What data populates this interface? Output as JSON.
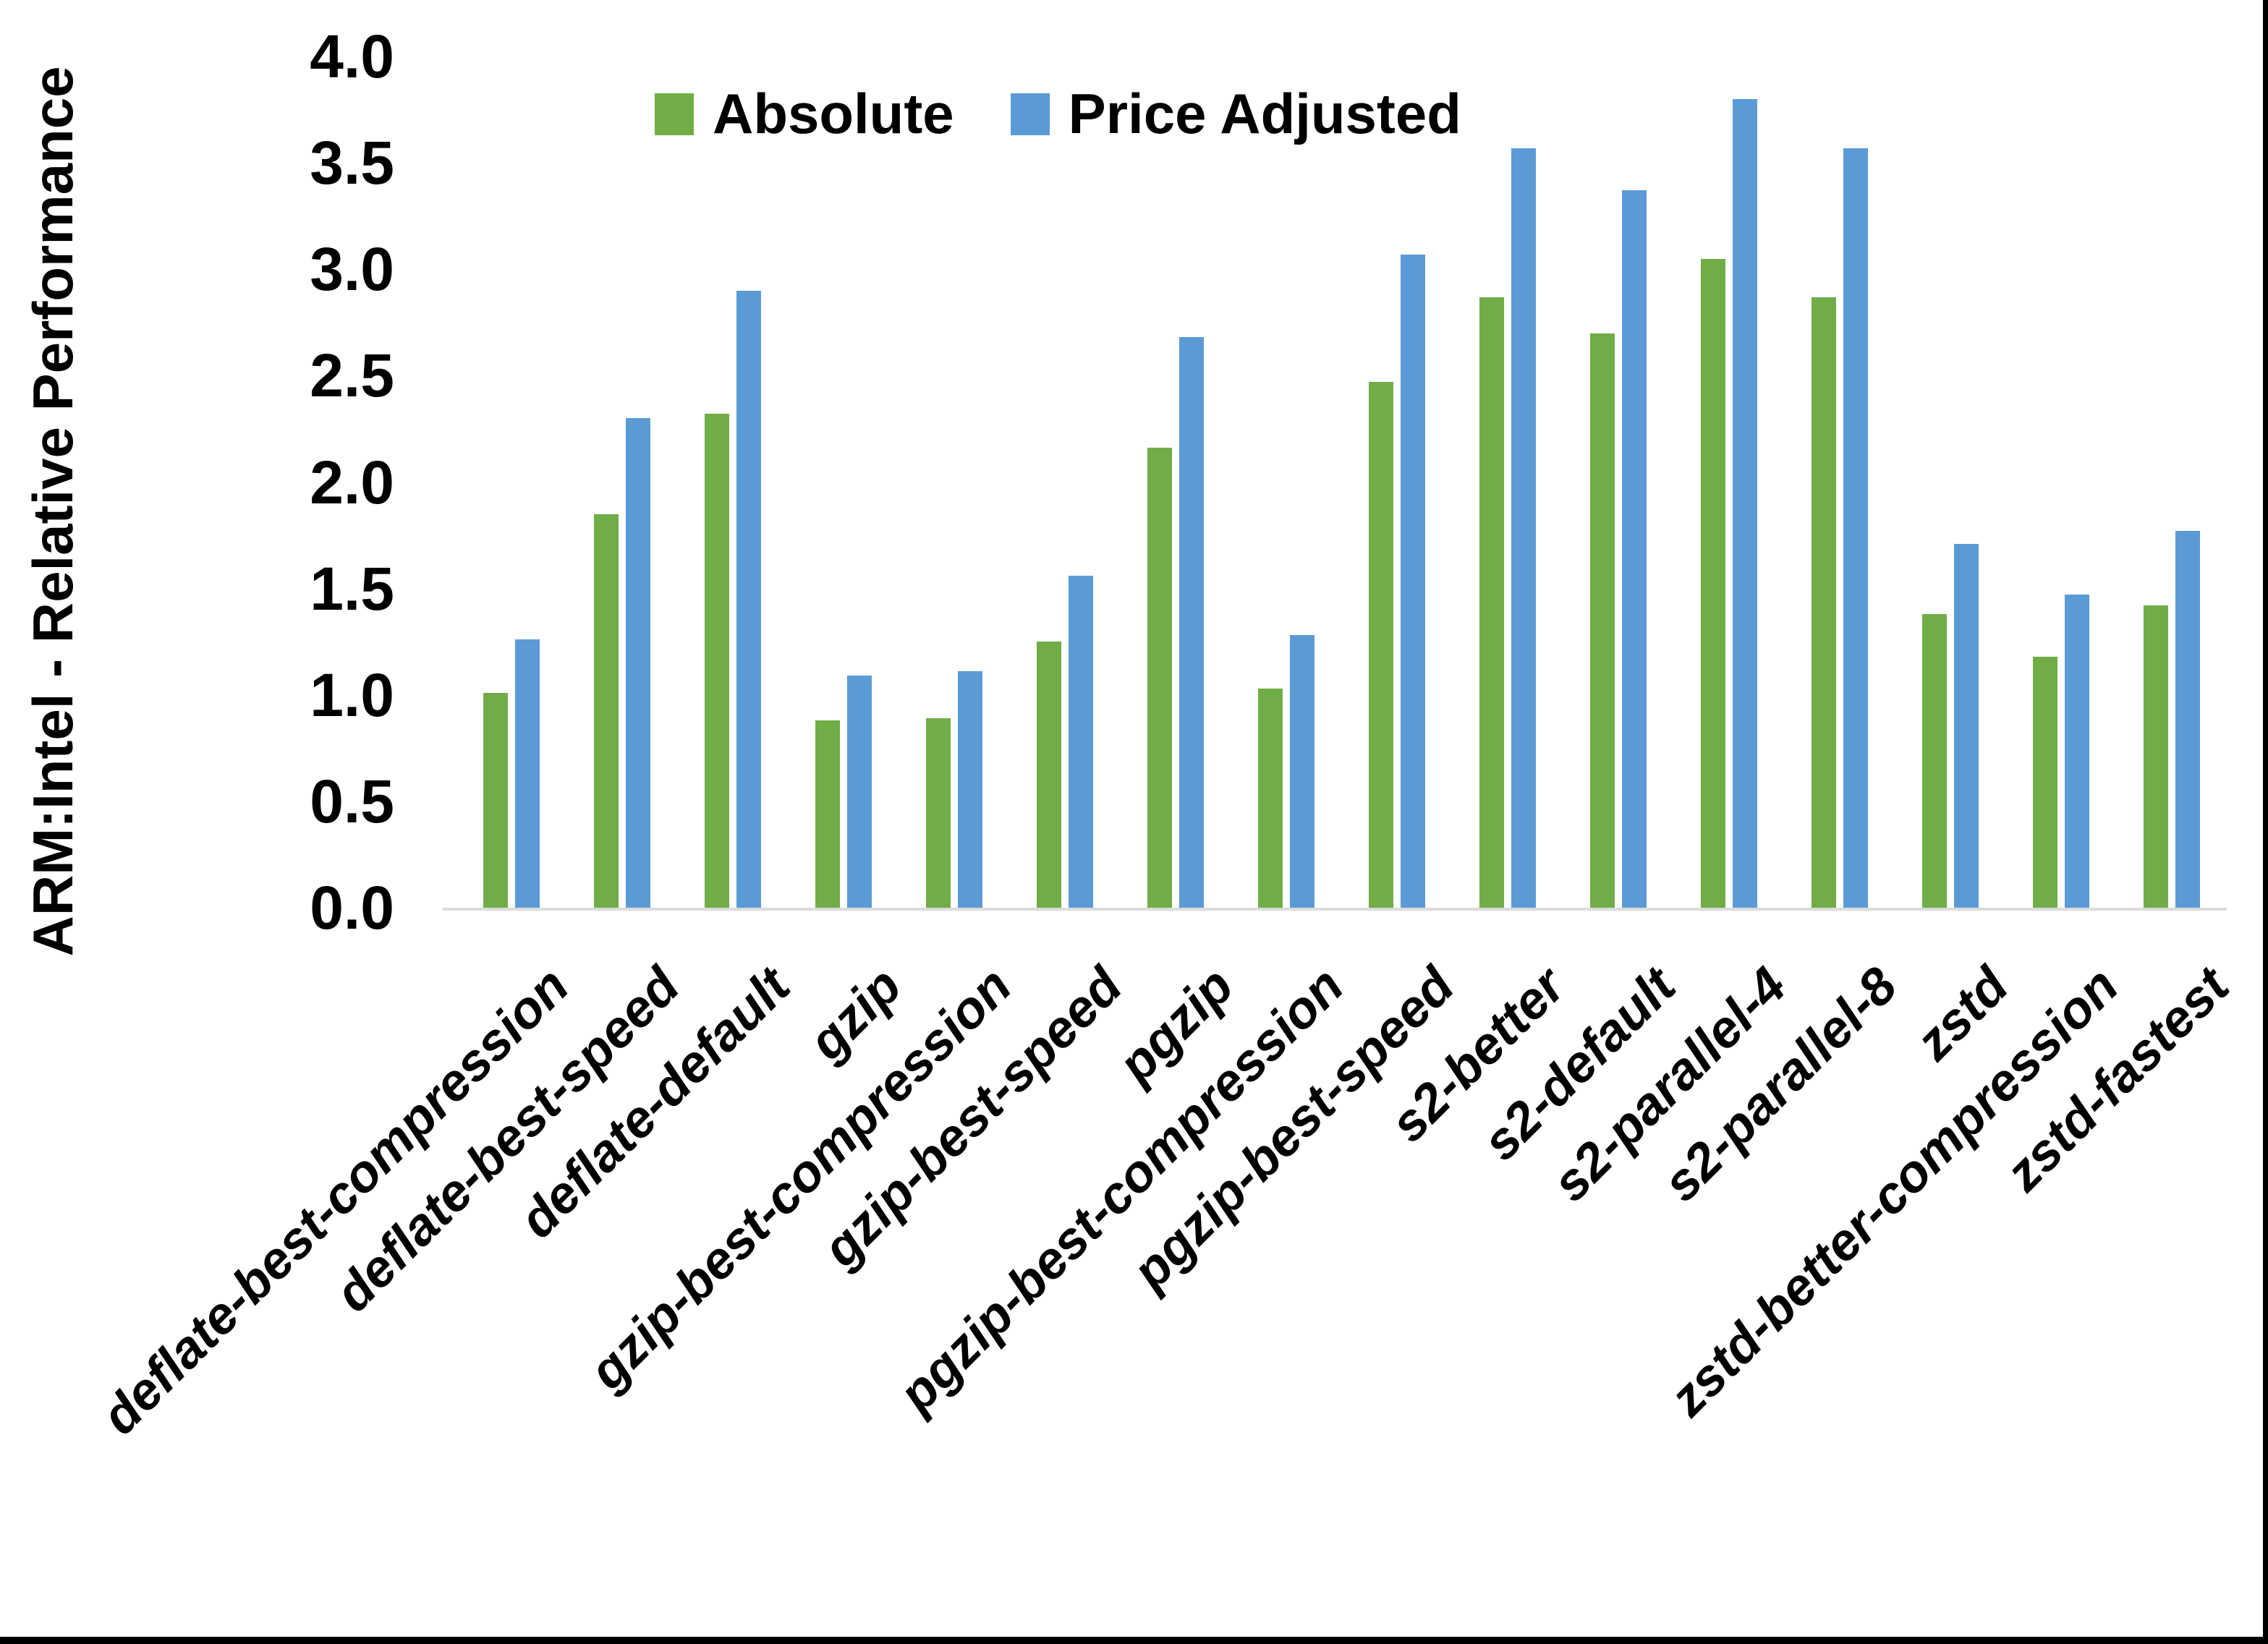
{
  "chart_data": {
    "type": "bar",
    "y_axis_title": "ARM:Intel - Relative Performance",
    "categories": [
      "deflate-best-compression",
      "deflate-best-speed",
      "deflate-default",
      "gzip",
      "gzip-best-compression",
      "gzip-best-speed",
      "pgzip",
      "pgzip-best-compression",
      "pgzip-best-speed",
      "s2-better",
      "s2-default",
      "s2-parallel-4",
      "s2-parallel-8",
      "zstd",
      "zstd-better-compression",
      "zstd-fastest"
    ],
    "series": [
      {
        "name": "Absolute",
        "color": "#70AD47",
        "values": [
          1.01,
          1.85,
          2.32,
          0.88,
          0.89,
          1.25,
          2.16,
          1.03,
          2.47,
          2.87,
          2.7,
          3.05,
          2.87,
          1.38,
          1.18,
          1.42
        ]
      },
      {
        "name": "Price Adjusted",
        "color": "#5B9BD5",
        "values": [
          1.26,
          2.3,
          2.9,
          1.09,
          1.11,
          1.56,
          2.68,
          1.28,
          3.07,
          3.57,
          3.37,
          3.8,
          3.57,
          1.71,
          1.47,
          1.77
        ]
      }
    ],
    "ylim": [
      0.0,
      4.0
    ],
    "ytick_step": 0.5,
    "ytick_labels": [
      "0.0",
      "0.5",
      "1.0",
      "1.5",
      "2.0",
      "2.5",
      "3.0",
      "3.5",
      "4.0"
    ],
    "grid": false,
    "legend_position": "top-center",
    "axis_line_color": "#DCDCDC",
    "border_color": "#000000"
  }
}
